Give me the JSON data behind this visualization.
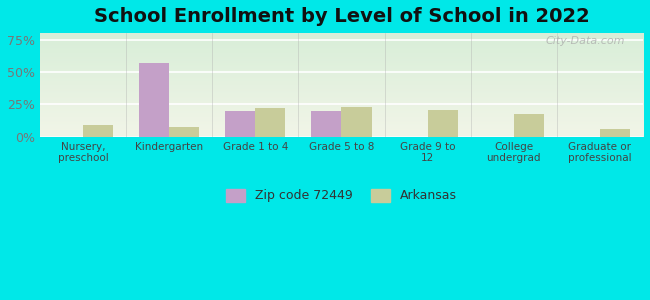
{
  "title": "School Enrollment by Level of School in 2022",
  "categories": [
    "Nursery,\npreschool",
    "Kindergarten",
    "Grade 1 to 4",
    "Grade 5 to 8",
    "Grade 9 to\n12",
    "College\nundergrad",
    "Graduate or\nprofessional"
  ],
  "zip_values": [
    0,
    57,
    20,
    20,
    0,
    0,
    0
  ],
  "ark_values": [
    9,
    8,
    22,
    23,
    21,
    18,
    6
  ],
  "zip_color": "#c4a0c8",
  "ark_color": "#c8cc9a",
  "ylim": [
    0,
    80
  ],
  "yticks": [
    0,
    25,
    50,
    75
  ],
  "ytick_labels": [
    "0%",
    "25%",
    "50%",
    "75%"
  ],
  "title_fontsize": 14,
  "legend_labels": [
    "Zip code 72449",
    "Arkansas"
  ],
  "bg_outer": "#00e8e8",
  "bg_plot_top_color": "#d8eed8",
  "bg_plot_bottom_color": "#f2f5e8",
  "watermark": "City-Data.com",
  "grid_color": "#ffffff",
  "tick_color": "#777777",
  "bar_width": 0.35
}
